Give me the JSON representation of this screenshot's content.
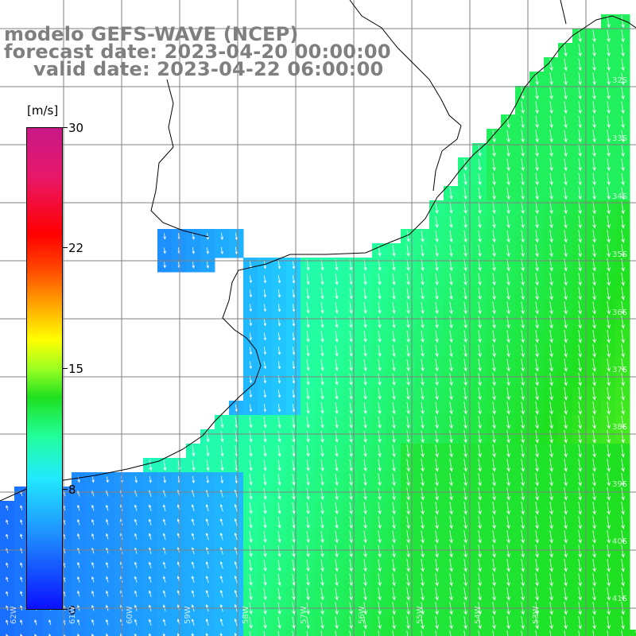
{
  "header": {
    "model": "modelo GEFS-WAVE (NCEP)",
    "forecast": "forecast date: 2023-04-20 00:00:00",
    "valid": "valid date: 2023-04-22 06:00:00"
  },
  "colorbar": {
    "unit": "[m/s]",
    "ticks": [
      "30",
      "22",
      "15",
      "8",
      "0"
    ],
    "tick_values": [
      30,
      22,
      15,
      8,
      0
    ],
    "min": 0,
    "max": 30
  },
  "lat_labels": [
    "32S",
    "33S",
    "34S",
    "35S",
    "36S",
    "37S",
    "38S",
    "39S",
    "40S",
    "41S"
  ],
  "lon_labels": [
    "62W",
    "61W",
    "60W",
    "59W",
    "58W",
    "57W",
    "56W",
    "55W",
    "54W",
    "53W"
  ],
  "colors": {
    "land": "#ffffff",
    "grid": "#808080",
    "coast": "#000000",
    "arrows": "#ffffff",
    "header_text": "#7f7f7f"
  },
  "wind_field": {
    "description_units": "m/s",
    "calm_zone_speed": 3,
    "offshore_speed": 11,
    "strong_zone_speed": 13
  }
}
